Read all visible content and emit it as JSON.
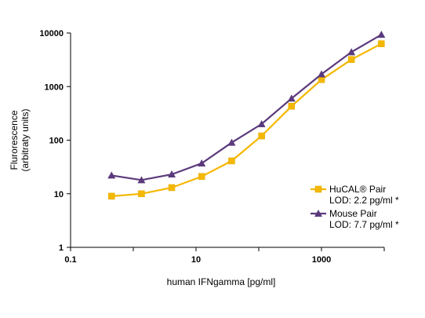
{
  "chart_data": {
    "type": "line",
    "title": "",
    "xlabel": "human IFNgamma [pg/ml]",
    "ylabel": "Flurorescence\n(arbitraty units)",
    "xscale": "log",
    "yscale": "log",
    "xlim": [
      0.1,
      10000
    ],
    "ylim": [
      1,
      10000
    ],
    "x_ticks": [
      "0.1",
      "10",
      "1000"
    ],
    "y_ticks": [
      "1",
      "10",
      "100",
      "1000",
      "10000"
    ],
    "grid": false,
    "legend_position": "bottom-right",
    "series": [
      {
        "name": "HuCAL® Pair\nLOD: 2.2 pg/ml *",
        "color": "#f5b800",
        "marker": "square",
        "x": [
          0.45,
          1.35,
          4.1,
          12.3,
          37,
          111,
          333,
          1000,
          3000,
          9000
        ],
        "y": [
          9,
          10,
          13,
          21,
          41,
          120,
          430,
          1350,
          3200,
          6300
        ]
      },
      {
        "name": "Mouse Pair\nLOD: 7.7 pg/ml *",
        "color": "#5b3a7c",
        "marker": "triangle",
        "x": [
          0.45,
          1.35,
          4.1,
          12.3,
          37,
          111,
          333,
          1000,
          3000,
          9000
        ],
        "y": [
          22,
          18,
          23,
          37,
          90,
          200,
          600,
          1700,
          4400,
          9300
        ]
      }
    ]
  }
}
